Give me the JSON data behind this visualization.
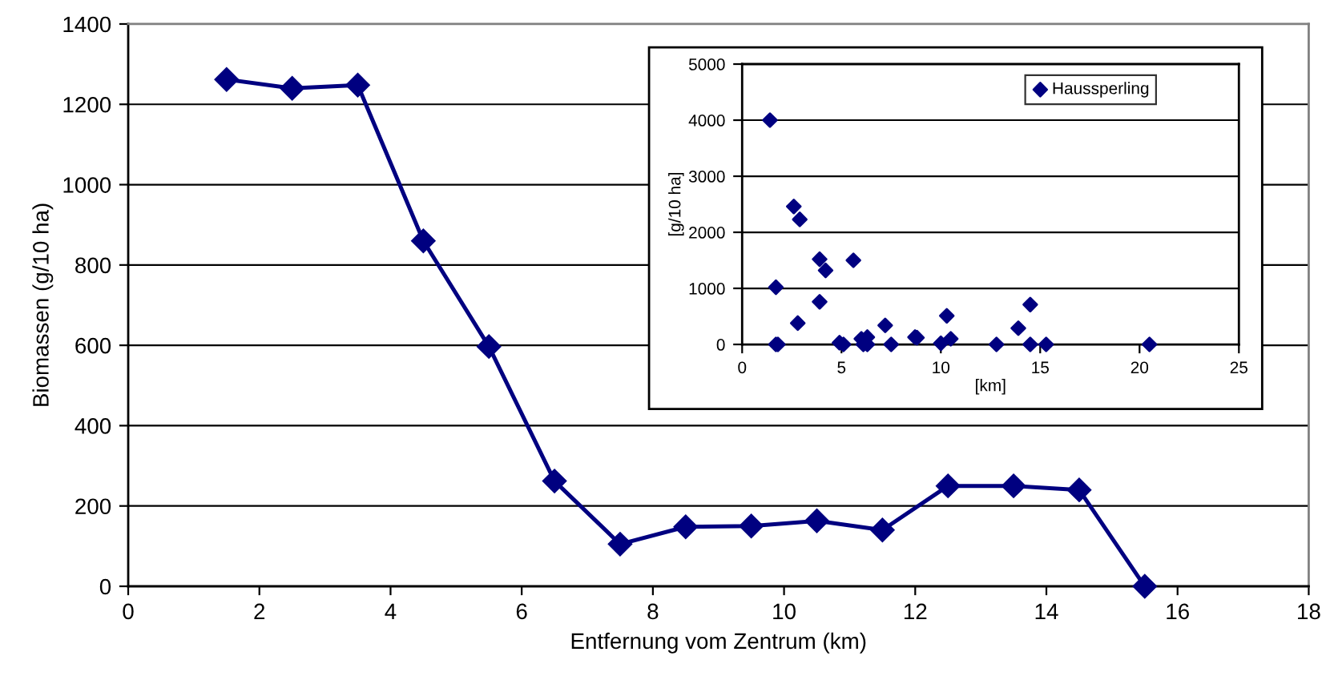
{
  "chart_data": [
    {
      "type": "line",
      "xlabel": "Entfernung vom Zentrum (km)",
      "ylabel": "Biomassen (g/10 ha)",
      "x": [
        1.5,
        2.5,
        3.5,
        4.5,
        5.5,
        6.5,
        7.5,
        8.5,
        9.5,
        10.5,
        11.5,
        12.5,
        13.5,
        14.5,
        15.5
      ],
      "series": [
        {
          "color": "#000080",
          "values": [
            1262,
            1240,
            1248,
            860,
            597,
            262,
            105,
            148,
            150,
            163,
            140,
            250,
            250,
            240,
            0
          ]
        }
      ],
      "xlim": [
        0,
        18
      ],
      "xticks": [
        0,
        2,
        4,
        6,
        8,
        10,
        12,
        14,
        16,
        18
      ],
      "ylim": [
        0,
        1400
      ],
      "yticks": [
        0,
        200,
        400,
        600,
        800,
        1000,
        1200,
        1400
      ],
      "grid": "y",
      "marker": "diamond",
      "line_style": "solid",
      "legend": false
    },
    {
      "type": "scatter",
      "xlabel": "[km]",
      "ylabel": "[g/10 ha]",
      "x": [
        1.4,
        1.7,
        1.7,
        1.8,
        2.6,
        2.9,
        2.8,
        3.9,
        4.2,
        3.9,
        5.6,
        4.9,
        5.1,
        6.0,
        6.3,
        6.1,
        6.3,
        7.2,
        7.5,
        8.7,
        8.8,
        10.0,
        10.3,
        10.5,
        12.8,
        13.9,
        14.5,
        14.5,
        15.3,
        20.5
      ],
      "series": [
        {
          "name": "Haussperling",
          "color": "#000080",
          "values": [
            4000,
            1020,
            0,
            0,
            2460,
            2230,
            380,
            1520,
            1320,
            760,
            1500,
            30,
            0,
            100,
            130,
            0,
            0,
            340,
            0,
            130,
            120,
            20,
            510,
            100,
            0,
            290,
            710,
            0,
            0,
            0
          ]
        }
      ],
      "xlim": [
        0,
        25
      ],
      "xticks": [
        0,
        5,
        10,
        15,
        20,
        25
      ],
      "ylim": [
        0,
        5000
      ],
      "yticks": [
        0,
        1000,
        2000,
        3000,
        4000,
        5000
      ],
      "grid": "y",
      "marker": "diamond",
      "legend": "top right"
    }
  ]
}
